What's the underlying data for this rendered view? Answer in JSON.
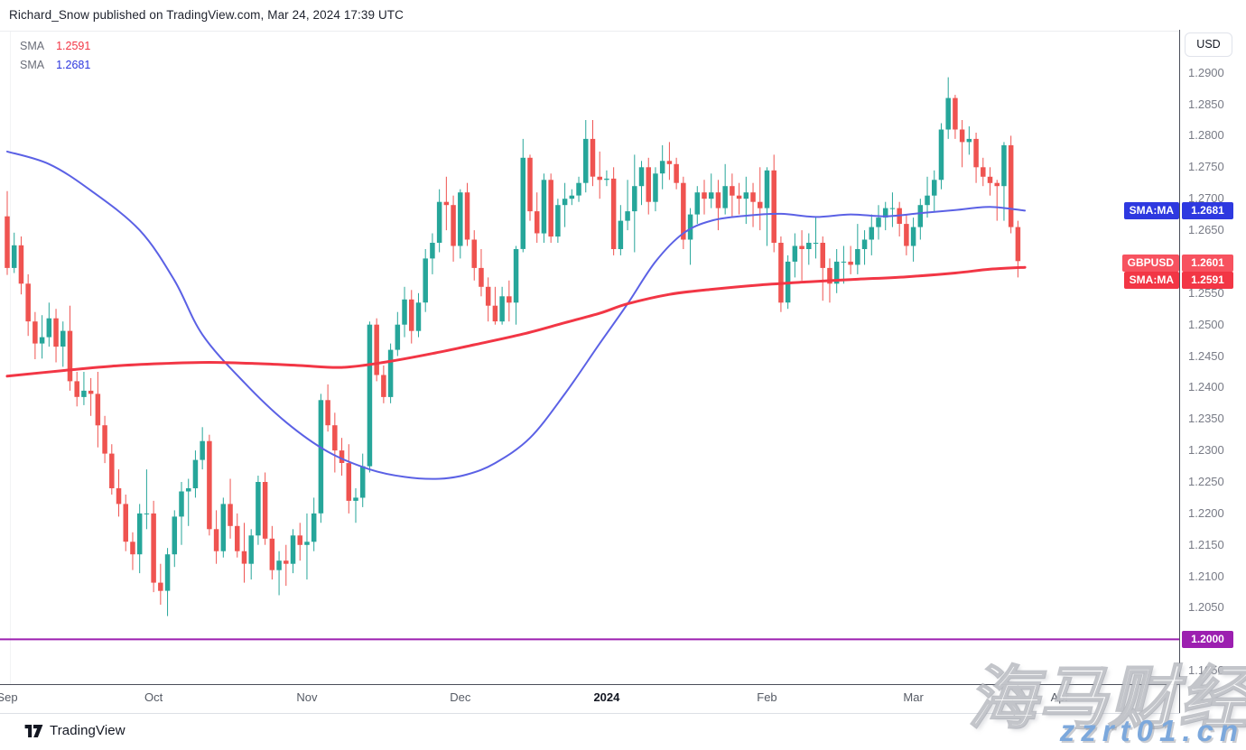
{
  "header": {
    "title": "Richard_Snow published on TradingView.com, Mar 24, 2024 17:39 UTC"
  },
  "legend": [
    {
      "label": "SMA",
      "value": "1.2591",
      "color": "#F23645"
    },
    {
      "label": "SMA",
      "value": "1.2681",
      "color": "#2C36DE"
    }
  ],
  "price_axis": {
    "currency_button": "USD",
    "ticks": [
      1.29,
      1.285,
      1.28,
      1.275,
      1.27,
      1.265,
      1.26,
      1.255,
      1.25,
      1.245,
      1.24,
      1.235,
      1.23,
      1.225,
      1.22,
      1.215,
      1.21,
      1.205,
      1.2,
      1.195
    ],
    "labels": [
      {
        "name": "SMA:MA",
        "value": "1.2681",
        "price": 1.2681,
        "bg": "#2E39E0"
      },
      {
        "name": "GBPUSD",
        "value": "1.2601",
        "price": 1.2601,
        "bg": "#F7525F"
      },
      {
        "name": "SMA:MA",
        "value": "1.2591",
        "price": 1.2591,
        "bg": "#F23645"
      },
      {
        "name": "",
        "value": "1.2000",
        "price": 1.2,
        "bg": "#9C1FB0"
      }
    ]
  },
  "footer": {
    "brand": "TradingView"
  },
  "watermark": {
    "cjk": "海马财经",
    "domain": "zzrt01.cn",
    "domain_color": "#7CA8DC"
  },
  "chart_data": {
    "type": "candlestick",
    "symbol": "GBPUSD",
    "timeframe": "1D",
    "up_color": "#26A69A",
    "down_color": "#EF5350",
    "ylim": [
      1.195,
      1.29
    ],
    "grid": false,
    "hline": {
      "price": 1.2,
      "color": "#9C1FB0",
      "label": "1.2000"
    },
    "months": [
      {
        "label": "Sep",
        "i": 0
      },
      {
        "label": "Oct",
        "i": 21
      },
      {
        "label": "Nov",
        "i": 43
      },
      {
        "label": "Dec",
        "i": 65
      },
      {
        "label": "2024",
        "i": 86,
        "bold": true
      },
      {
        "label": "Feb",
        "i": 109
      },
      {
        "label": "Mar",
        "i": 130
      },
      {
        "label": "Apr",
        "i": 151
      }
    ],
    "overlays": [
      {
        "name": "SMA slow",
        "color": "#F23645",
        "width": 3,
        "last_value": 1.2591,
        "points": [
          [
            0,
            1.2418
          ],
          [
            8,
            1.2427
          ],
          [
            15,
            1.2434
          ],
          [
            22,
            1.2438
          ],
          [
            29,
            1.244
          ],
          [
            36,
            1.2438
          ],
          [
            42,
            1.2435
          ],
          [
            48,
            1.2432
          ],
          [
            54,
            1.244
          ],
          [
            61,
            1.2454
          ],
          [
            67,
            1.2468
          ],
          [
            74,
            1.2485
          ],
          [
            80,
            1.2503
          ],
          [
            85,
            1.2518
          ],
          [
            89,
            1.2533
          ],
          [
            95,
            1.2548
          ],
          [
            101,
            1.2556
          ],
          [
            108,
            1.2563
          ],
          [
            115,
            1.2568
          ],
          [
            122,
            1.2572
          ],
          [
            129,
            1.2576
          ],
          [
            136,
            1.2582
          ],
          [
            141,
            1.2588
          ],
          [
            146,
            1.2591
          ]
        ]
      },
      {
        "name": "SMA fast",
        "color": "#5B61E5",
        "width": 2,
        "last_value": 1.2681,
        "points": [
          [
            0,
            1.2775
          ],
          [
            6,
            1.2755
          ],
          [
            12,
            1.2713
          ],
          [
            19,
            1.265
          ],
          [
            24,
            1.257
          ],
          [
            28,
            1.2484
          ],
          [
            34,
            1.2408
          ],
          [
            40,
            1.2345
          ],
          [
            46,
            1.2298
          ],
          [
            52,
            1.227
          ],
          [
            57,
            1.2258
          ],
          [
            62,
            1.2255
          ],
          [
            66,
            1.2262
          ],
          [
            70,
            1.228
          ],
          [
            75,
            1.232
          ],
          [
            80,
            1.239
          ],
          [
            85,
            1.247
          ],
          [
            89,
            1.2533
          ],
          [
            93,
            1.26
          ],
          [
            97,
            1.2645
          ],
          [
            101,
            1.2665
          ],
          [
            106,
            1.2673
          ],
          [
            111,
            1.2676
          ],
          [
            116,
            1.2671
          ],
          [
            121,
            1.2675
          ],
          [
            126,
            1.2672
          ],
          [
            131,
            1.2677
          ],
          [
            136,
            1.2682
          ],
          [
            141,
            1.2687
          ],
          [
            146,
            1.2681
          ]
        ]
      }
    ],
    "candles": [
      [
        1.2672,
        1.2712,
        1.2579,
        1.259
      ],
      [
        1.259,
        1.2646,
        1.2582,
        1.2626
      ],
      [
        1.2626,
        1.264,
        1.2548,
        1.2565
      ],
      [
        1.2565,
        1.258,
        1.2482,
        1.2505
      ],
      [
        1.2505,
        1.252,
        1.2445,
        1.247
      ],
      [
        1.247,
        1.2515,
        1.2446,
        1.248
      ],
      [
        1.248,
        1.2535,
        1.2465,
        1.251
      ],
      [
        1.251,
        1.2525,
        1.244,
        1.2465
      ],
      [
        1.2465,
        1.2505,
        1.2433,
        1.249
      ],
      [
        1.249,
        1.253,
        1.2395,
        1.241
      ],
      [
        1.241,
        1.2425,
        1.237,
        1.2385
      ],
      [
        1.2385,
        1.2425,
        1.2372,
        1.2395
      ],
      [
        1.2395,
        1.2415,
        1.2355,
        1.239
      ],
      [
        1.239,
        1.2425,
        1.2305,
        1.234
      ],
      [
        1.234,
        1.2355,
        1.228,
        1.2295
      ],
      [
        1.2295,
        1.231,
        1.223,
        1.224
      ],
      [
        1.224,
        1.227,
        1.2195,
        1.2215
      ],
      [
        1.2215,
        1.223,
        1.214,
        1.2155
      ],
      [
        1.2155,
        1.217,
        1.211,
        1.2135
      ],
      [
        1.2135,
        1.2215,
        1.2105,
        1.22
      ],
      [
        1.22,
        1.227,
        1.2175,
        1.22
      ],
      [
        1.22,
        1.222,
        1.2075,
        1.209
      ],
      [
        1.209,
        1.212,
        1.2055,
        1.2077
      ],
      [
        1.2077,
        1.2145,
        1.2037,
        1.2135
      ],
      [
        1.2135,
        1.2205,
        1.2115,
        1.2195
      ],
      [
        1.2195,
        1.225,
        1.215,
        1.2235
      ],
      [
        1.2235,
        1.2255,
        1.218,
        1.224
      ],
      [
        1.224,
        1.23,
        1.2225,
        1.2285
      ],
      [
        1.2285,
        1.2337,
        1.227,
        1.2315
      ],
      [
        1.2315,
        1.2325,
        1.2165,
        1.2175
      ],
      [
        1.2175,
        1.2205,
        1.212,
        1.214
      ],
      [
        1.214,
        1.2225,
        1.213,
        1.2215
      ],
      [
        1.2215,
        1.2255,
        1.216,
        1.218
      ],
      [
        1.218,
        1.22,
        1.213,
        1.214
      ],
      [
        1.214,
        1.2185,
        1.209,
        1.212
      ],
      [
        1.212,
        1.2175,
        1.2095,
        1.2165
      ],
      [
        1.2165,
        1.226,
        1.215,
        1.225
      ],
      [
        1.225,
        1.2265,
        1.215,
        1.216
      ],
      [
        1.216,
        1.218,
        1.2095,
        1.211
      ],
      [
        1.211,
        1.214,
        1.207,
        1.2125
      ],
      [
        1.2125,
        1.215,
        1.2085,
        1.212
      ],
      [
        1.212,
        1.2175,
        1.2105,
        1.2165
      ],
      [
        1.2165,
        1.2185,
        1.2125,
        1.215
      ],
      [
        1.215,
        1.22,
        1.2095,
        1.2155
      ],
      [
        1.2155,
        1.2225,
        1.214,
        1.22
      ],
      [
        1.22,
        1.239,
        1.2185,
        1.238
      ],
      [
        1.238,
        1.2405,
        1.233,
        1.234
      ],
      [
        1.234,
        1.236,
        1.2265,
        1.23
      ],
      [
        1.23,
        1.232,
        1.226,
        1.228
      ],
      [
        1.228,
        1.231,
        1.22,
        1.222
      ],
      [
        1.222,
        1.224,
        1.2185,
        1.2225
      ],
      [
        1.2225,
        1.2295,
        1.221,
        1.2275
      ],
      [
        1.2275,
        1.2505,
        1.2265,
        1.25
      ],
      [
        1.25,
        1.251,
        1.241,
        1.242
      ],
      [
        1.242,
        1.2435,
        1.2375,
        1.2385
      ],
      [
        1.2385,
        1.247,
        1.2375,
        1.246
      ],
      [
        1.246,
        1.252,
        1.245,
        1.25
      ],
      [
        1.25,
        1.256,
        1.248,
        1.254
      ],
      [
        1.254,
        1.2555,
        1.247,
        1.249
      ],
      [
        1.249,
        1.255,
        1.248,
        1.2535
      ],
      [
        1.2535,
        1.262,
        1.252,
        1.2605
      ],
      [
        1.2605,
        1.2645,
        1.258,
        1.263
      ],
      [
        1.263,
        1.2715,
        1.2615,
        1.2695
      ],
      [
        1.2695,
        1.2735,
        1.265,
        1.269
      ],
      [
        1.269,
        1.2705,
        1.26,
        1.2625
      ],
      [
        1.2625,
        1.2715,
        1.2605,
        1.271
      ],
      [
        1.271,
        1.2725,
        1.2625,
        1.2635
      ],
      [
        1.2635,
        1.265,
        1.257,
        1.259
      ],
      [
        1.259,
        1.262,
        1.2545,
        1.256
      ],
      [
        1.256,
        1.2575,
        1.2505,
        1.253
      ],
      [
        1.253,
        1.256,
        1.25,
        1.2505
      ],
      [
        1.2505,
        1.256,
        1.25,
        1.2545
      ],
      [
        1.2545,
        1.257,
        1.2505,
        1.2535
      ],
      [
        1.2535,
        1.2625,
        1.25,
        1.262
      ],
      [
        1.262,
        1.2795,
        1.2615,
        1.2765
      ],
      [
        1.2765,
        1.277,
        1.2665,
        1.268
      ],
      [
        1.268,
        1.271,
        1.263,
        1.2645
      ],
      [
        1.2645,
        1.274,
        1.263,
        1.273
      ],
      [
        1.273,
        1.274,
        1.263,
        1.264
      ],
      [
        1.264,
        1.27,
        1.263,
        1.269
      ],
      [
        1.269,
        1.2725,
        1.2655,
        1.27
      ],
      [
        1.27,
        1.2715,
        1.269,
        1.2705
      ],
      [
        1.2705,
        1.2735,
        1.2695,
        1.2725
      ],
      [
        1.2725,
        1.2825,
        1.271,
        1.2795
      ],
      [
        1.2795,
        1.2825,
        1.272,
        1.2735
      ],
      [
        1.2735,
        1.2775,
        1.27,
        1.273
      ],
      [
        1.273,
        1.2745,
        1.272,
        1.2732
      ],
      [
        1.2732,
        1.275,
        1.261,
        1.262
      ],
      [
        1.262,
        1.269,
        1.261,
        1.2665
      ],
      [
        1.2665,
        1.273,
        1.265,
        1.268
      ],
      [
        1.268,
        1.277,
        1.2615,
        1.272
      ],
      [
        1.272,
        1.276,
        1.269,
        1.275
      ],
      [
        1.275,
        1.2765,
        1.2675,
        1.2695
      ],
      [
        1.2695,
        1.275,
        1.268,
        1.274
      ],
      [
        1.274,
        1.2785,
        1.2715,
        1.276
      ],
      [
        1.276,
        1.279,
        1.273,
        1.2755
      ],
      [
        1.2755,
        1.2765,
        1.2715,
        1.2725
      ],
      [
        1.2725,
        1.2735,
        1.262,
        1.2635
      ],
      [
        1.2635,
        1.2685,
        1.2595,
        1.2675
      ],
      [
        1.2675,
        1.272,
        1.266,
        1.271
      ],
      [
        1.271,
        1.273,
        1.2675,
        1.27
      ],
      [
        1.27,
        1.274,
        1.2685,
        1.271
      ],
      [
        1.271,
        1.273,
        1.265,
        1.2685
      ],
      [
        1.2685,
        1.2755,
        1.2675,
        1.272
      ],
      [
        1.272,
        1.274,
        1.267,
        1.2705
      ],
      [
        1.2705,
        1.2725,
        1.2675,
        1.27
      ],
      [
        1.27,
        1.2735,
        1.266,
        1.271
      ],
      [
        1.271,
        1.2725,
        1.2655,
        1.2695
      ],
      [
        1.2695,
        1.275,
        1.265,
        1.2685
      ],
      [
        1.2685,
        1.275,
        1.2625,
        1.2745
      ],
      [
        1.2745,
        1.277,
        1.2615,
        1.263
      ],
      [
        1.263,
        1.264,
        1.252,
        1.2535
      ],
      [
        1.2535,
        1.261,
        1.2525,
        1.26
      ],
      [
        1.26,
        1.2645,
        1.2575,
        1.2625
      ],
      [
        1.2625,
        1.265,
        1.257,
        1.262
      ],
      [
        1.262,
        1.2645,
        1.2595,
        1.263
      ],
      [
        1.263,
        1.267,
        1.2605,
        1.263
      ],
      [
        1.263,
        1.264,
        1.2538,
        1.259
      ],
      [
        1.259,
        1.2605,
        1.2535,
        1.2565
      ],
      [
        1.2565,
        1.262,
        1.255,
        1.26
      ],
      [
        1.26,
        1.2625,
        1.2565,
        1.26
      ],
      [
        1.26,
        1.2625,
        1.258,
        1.2595
      ],
      [
        1.2595,
        1.266,
        1.258,
        1.262
      ],
      [
        1.262,
        1.265,
        1.2595,
        1.2635
      ],
      [
        1.2635,
        1.2675,
        1.261,
        1.2655
      ],
      [
        1.2655,
        1.269,
        1.2635,
        1.267
      ],
      [
        1.267,
        1.2695,
        1.265,
        1.2685
      ],
      [
        1.2685,
        1.271,
        1.2655,
        1.2685
      ],
      [
        1.2685,
        1.2695,
        1.264,
        1.266
      ],
      [
        1.266,
        1.2675,
        1.261,
        1.2625
      ],
      [
        1.2625,
        1.267,
        1.26,
        1.2655
      ],
      [
        1.2655,
        1.27,
        1.2635,
        1.269
      ],
      [
        1.269,
        1.2735,
        1.267,
        1.2705
      ],
      [
        1.2705,
        1.2745,
        1.268,
        1.273
      ],
      [
        1.273,
        1.282,
        1.2715,
        1.281
      ],
      [
        1.281,
        1.2893,
        1.2795,
        1.286
      ],
      [
        1.286,
        1.2865,
        1.2795,
        1.281
      ],
      [
        1.281,
        1.2825,
        1.275,
        1.279
      ],
      [
        1.279,
        1.2815,
        1.277,
        1.2795
      ],
      [
        1.2795,
        1.2805,
        1.2725,
        1.275
      ],
      [
        1.275,
        1.2765,
        1.272,
        1.2735
      ],
      [
        1.2735,
        1.275,
        1.2705,
        1.2725
      ],
      [
        1.2725,
        1.273,
        1.2665,
        1.272
      ],
      [
        1.272,
        1.279,
        1.2665,
        1.2785
      ],
      [
        1.2785,
        1.28,
        1.2645,
        1.2655
      ],
      [
        1.2655,
        1.2665,
        1.2575,
        1.2601
      ]
    ]
  }
}
